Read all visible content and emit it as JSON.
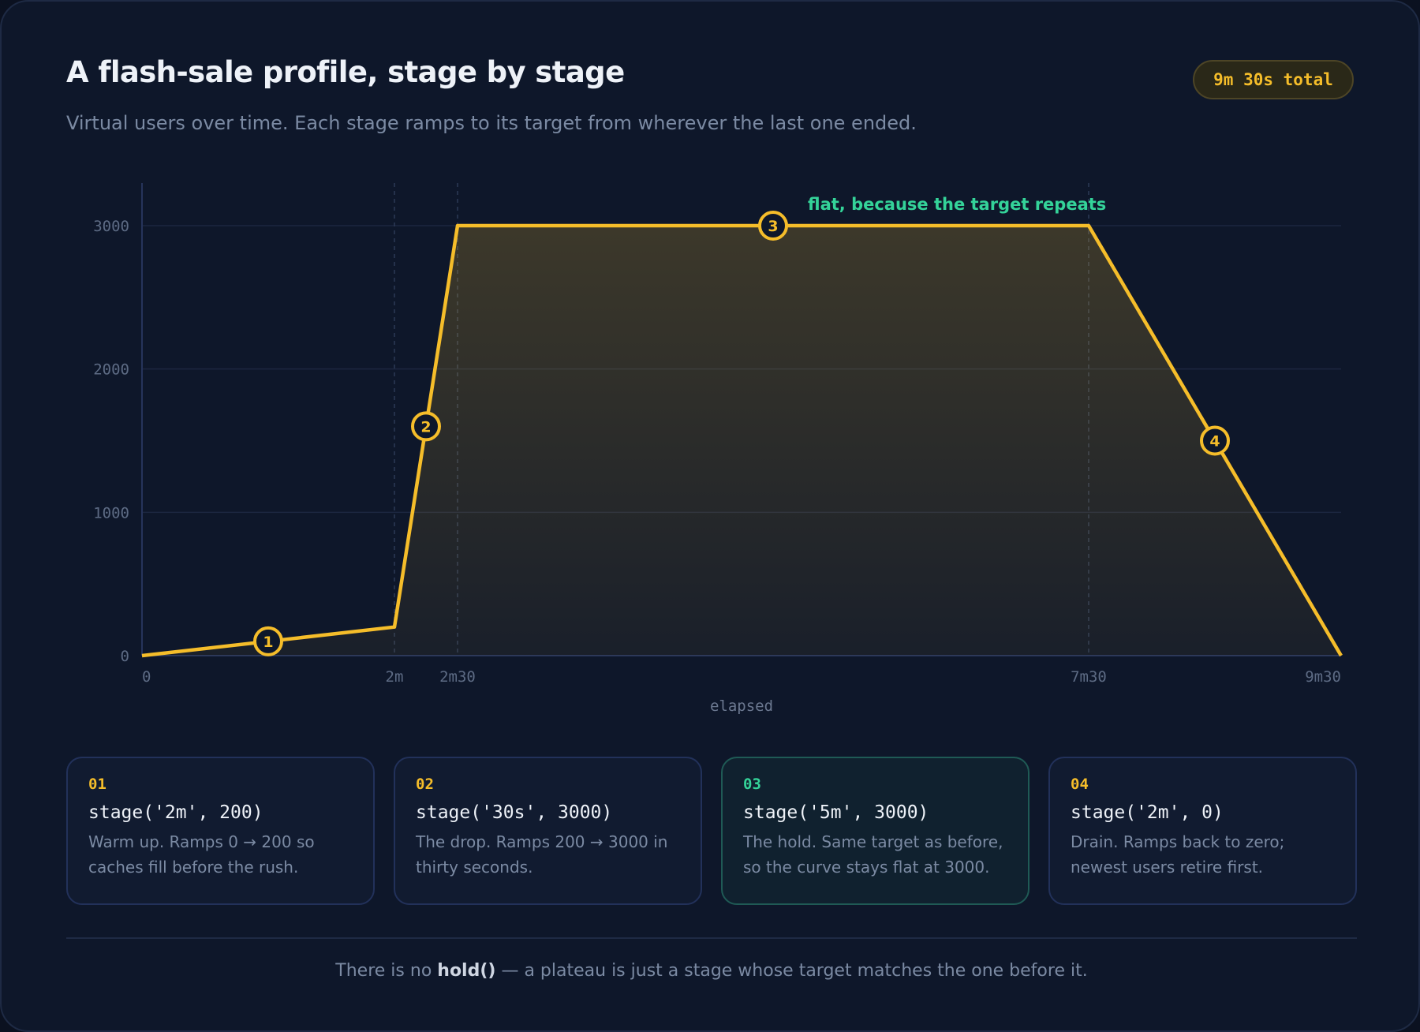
{
  "header": {
    "title": "A flash-sale profile, stage by stage",
    "subtitle": "Virtual users over time. Each stage ramps to its target from wherever the last one ended.",
    "badge": "9m 30s total"
  },
  "chart_data": {
    "type": "line",
    "x_unit": "seconds",
    "x": [
      0,
      120,
      150,
      450,
      570
    ],
    "y": [
      0,
      200,
      3000,
      3000,
      0
    ],
    "xlim": [
      0,
      570
    ],
    "ylim": [
      0,
      3300
    ],
    "x_ticks": [
      {
        "value": 0,
        "label": "0"
      },
      {
        "value": 120,
        "label": "2m"
      },
      {
        "value": 150,
        "label": "2m30"
      },
      {
        "value": 450,
        "label": "7m30"
      },
      {
        "value": 570,
        "label": "9m30"
      }
    ],
    "y_ticks": [
      {
        "value": 0,
        "label": "0"
      },
      {
        "value": 1000,
        "label": "1000"
      },
      {
        "value": 2000,
        "label": "2000"
      },
      {
        "value": 3000,
        "label": "3000"
      }
    ],
    "xlabel": "elapsed",
    "ylabel": "",
    "grid": true,
    "stage_boundaries": [
      120,
      150,
      450
    ],
    "markers": [
      {
        "label": "1",
        "x": 60,
        "y": 100
      },
      {
        "label": "2",
        "x": 135,
        "y": 1600
      },
      {
        "label": "3",
        "x": 300,
        "y": 3000
      },
      {
        "label": "4",
        "x": 510,
        "y": 1500
      }
    ],
    "annotation": {
      "text": "flat, because the target repeats",
      "x": 300,
      "y": 3000
    },
    "colors": {
      "line": "#f5bd2a",
      "grid": "#1c2740",
      "annotation": "#34d399"
    }
  },
  "stages": [
    {
      "num": "01",
      "code": "stage('2m', 200)",
      "desc": "Warm up. Ramps 0 → 200 so caches fill before the rush."
    },
    {
      "num": "02",
      "code": "stage('30s', 3000)",
      "desc": "The drop. Ramps 200 → 3000 in thirty seconds."
    },
    {
      "num": "03",
      "code": "stage('5m', 3000)",
      "desc": "The hold. Same target as before, so the curve stays flat at 3000."
    },
    {
      "num": "04",
      "code": "stage('2m', 0)",
      "desc": "Drain. Ramps back to zero; newest users retire first."
    }
  ],
  "footer": {
    "prefix": "There is no ",
    "bold": "hold()",
    "suffix": " — a plateau is just a stage whose target matches the one before it."
  }
}
